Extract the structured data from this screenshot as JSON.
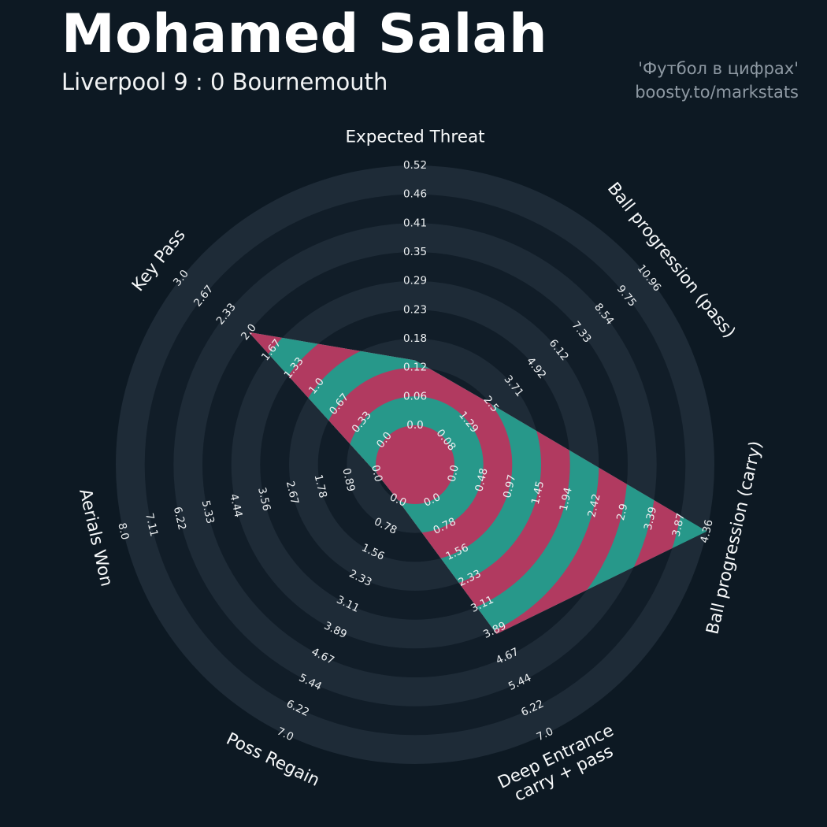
{
  "header": {
    "title": "Mohamed Salah",
    "subtitle": "Liverpool 9 : 0 Bournemouth",
    "credit_line1": "'Футбол в цифрах'",
    "credit_line2": "boosty.to/markstats"
  },
  "colors": {
    "background": "#0d1923",
    "ring_dark": "#111d28",
    "ring_light": "#1e2b37",
    "radar_teal": "#27988a",
    "radar_crimson": "#b13a60",
    "tick_text": "#eceff1",
    "axis_title_text": "#f7f9fa",
    "credit_text": "#8e99a3"
  },
  "chart_data": {
    "type": "radar",
    "num_rings": 9,
    "ticks_per_axis": 10,
    "axes": [
      {
        "label": "Expected Threat",
        "min": 0.0,
        "max": 0.52,
        "value": 0.13,
        "ticks": [
          "0.0",
          "0.06",
          "0.12",
          "0.18",
          "0.23",
          "0.29",
          "0.35",
          "0.41",
          "0.46",
          "0.52"
        ]
      },
      {
        "label": "Ball progression (pass)",
        "min": 0.08,
        "max": 10.96,
        "value": 2.5,
        "ticks": [
          "0.08",
          "1.29",
          "2.5",
          "3.71",
          "4.92",
          "6.12",
          "7.33",
          "8.54",
          "9.75",
          "10.96"
        ]
      },
      {
        "label": "Ball progression (carry)",
        "min": 0.0,
        "max": 4.36,
        "value": 4.36,
        "ticks": [
          "0.0",
          "0.48",
          "0.97",
          "1.45",
          "1.94",
          "2.42",
          "2.9",
          "3.39",
          "3.87",
          "4.36"
        ]
      },
      {
        "label": "Deep Entrance\ncarry + pass",
        "min": 0.0,
        "max": 7.0,
        "value": 4.0,
        "ticks": [
          "0.0",
          "0.78",
          "1.56",
          "2.33",
          "3.11",
          "3.89",
          "4.67",
          "5.44",
          "6.22",
          "7.0"
        ]
      },
      {
        "label": "Poss Regain",
        "min": 0.0,
        "max": 7.0,
        "value": 0.0,
        "ticks": [
          "0.0",
          "0.78",
          "1.56",
          "2.33",
          "3.11",
          "3.89",
          "4.67",
          "5.44",
          "6.22",
          "7.0"
        ]
      },
      {
        "label": "Aerials Won",
        "min": 0.0,
        "max": 8.0,
        "value": 0.0,
        "ticks": [
          "0.0",
          "0.89",
          "1.78",
          "2.67",
          "3.56",
          "4.44",
          "5.33",
          "6.22",
          "7.11",
          "8.0"
        ]
      },
      {
        "label": "Key Pass",
        "min": 0.0,
        "max": 3.0,
        "value": 2.0,
        "ticks": [
          "0.0",
          "0.33",
          "0.67",
          "1.0",
          "1.33",
          "1.67",
          "2.0",
          "2.33",
          "2.67",
          "3.0"
        ]
      }
    ]
  }
}
